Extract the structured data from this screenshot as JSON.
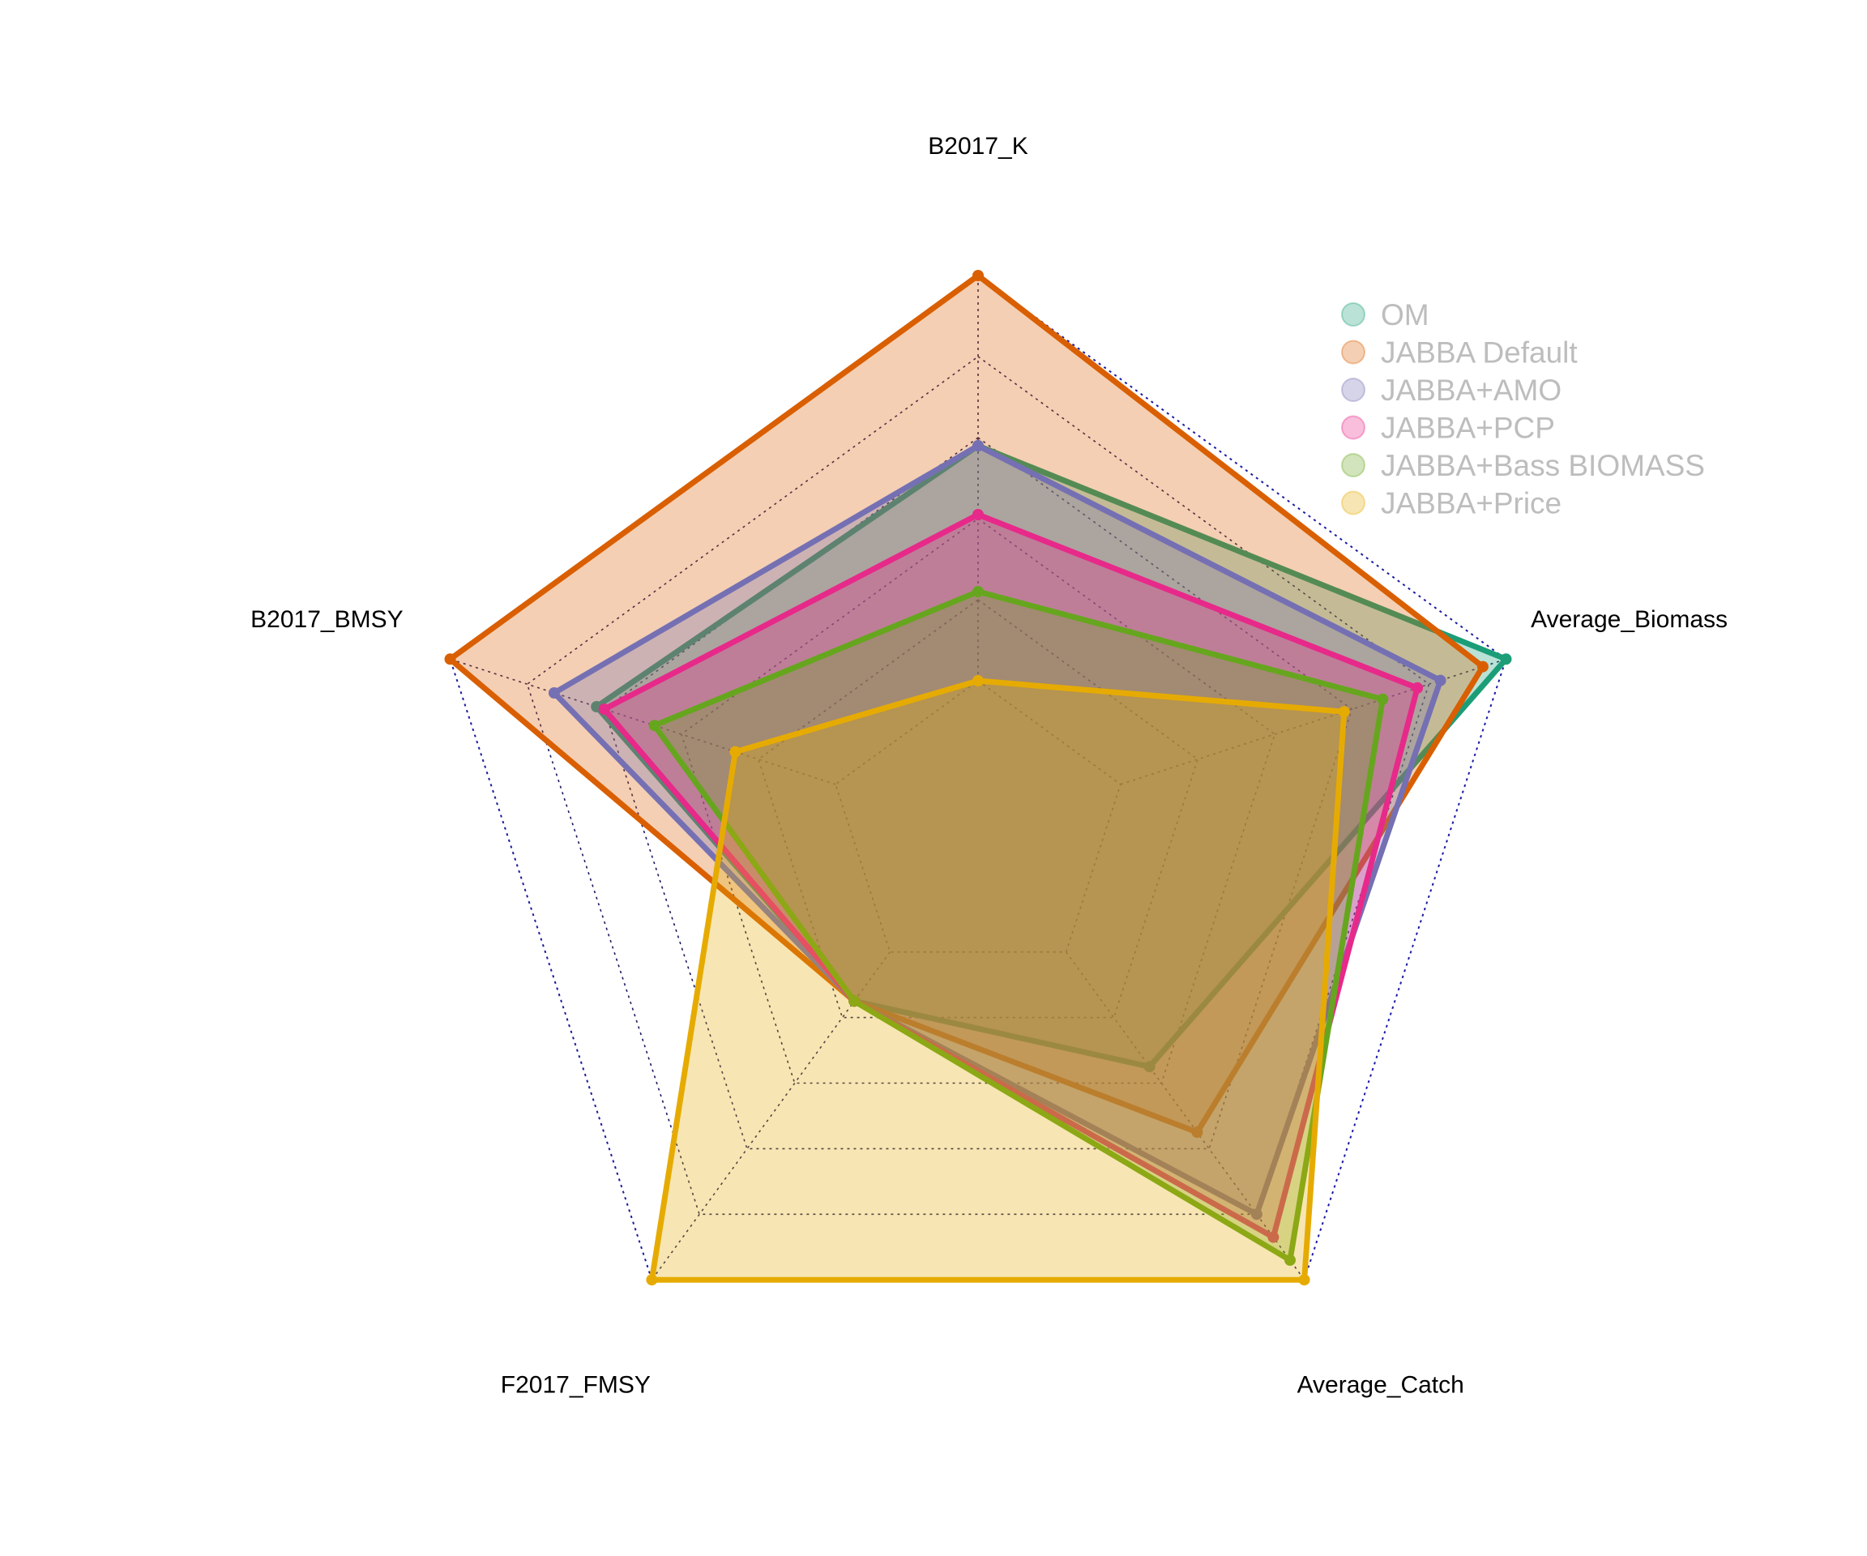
{
  "chart_data": {
    "type": "radar",
    "axes": [
      "B2017_K",
      "Average_Biomass",
      "Average_Catch",
      "F2017_FMSY",
      "B2017_BMSY"
    ],
    "rlim": [
      0,
      1
    ],
    "grid_levels": [
      0.2,
      0.4,
      0.6,
      0.8,
      1.0
    ],
    "grid": true,
    "legend_position": "top-right",
    "series": [
      {
        "name": "OM",
        "color": "#1b9e77",
        "values": [
          0.58,
          1.0,
          0.35,
          0.15,
          0.62
        ]
      },
      {
        "name": "JABBA Default",
        "color": "#d95f02",
        "values": [
          1.0,
          0.94,
          0.55,
          0.15,
          1.0
        ]
      },
      {
        "name": "JABBA+AMO",
        "color": "#7570b3",
        "values": [
          0.58,
          0.83,
          0.8,
          0.15,
          0.73
        ]
      },
      {
        "name": "JABBA+PCP",
        "color": "#e7298a",
        "values": [
          0.41,
          0.77,
          0.87,
          0.15,
          0.6
        ]
      },
      {
        "name": "JABBA+Bass BIOMASS",
        "color": "#66a61e",
        "values": [
          0.22,
          0.68,
          0.94,
          0.15,
          0.47
        ]
      },
      {
        "name": "JABBA+Price",
        "color": "#e6ab02",
        "values": [
          0.0,
          0.58,
          1.0,
          1.0,
          0.26
        ]
      }
    ]
  }
}
